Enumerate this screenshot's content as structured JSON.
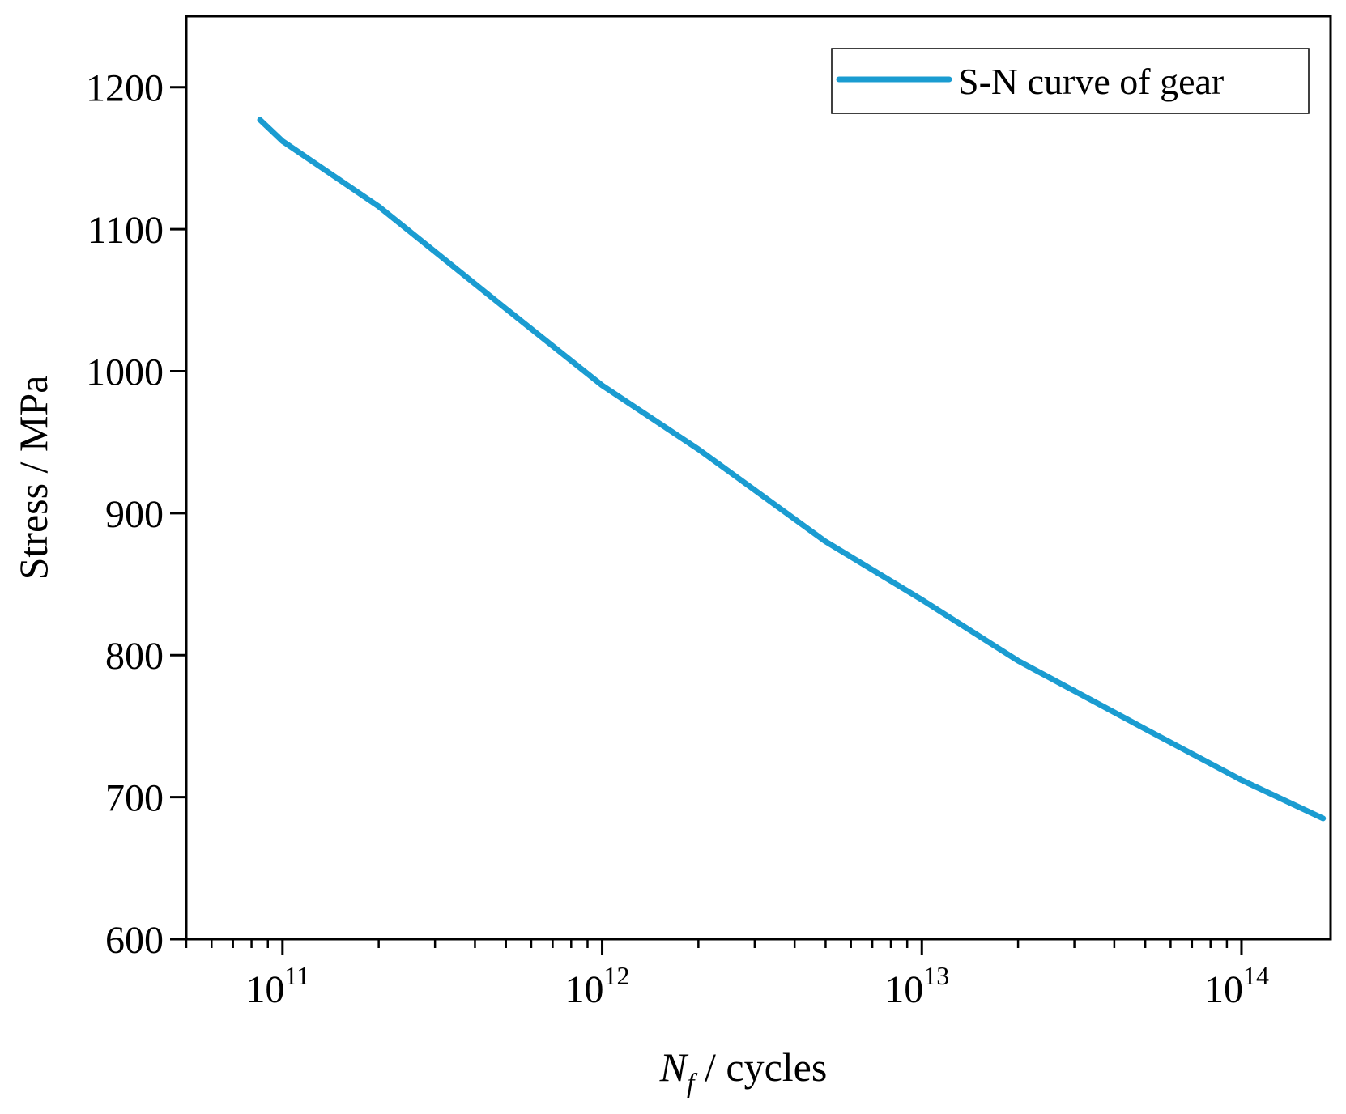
{
  "chart_data": {
    "type": "line",
    "title": "",
    "xlabel_main": "N",
    "xlabel_sub": "f",
    "xlabel_rest": " / cycles",
    "ylabel": "Stress / MPa",
    "x_scale": "log",
    "xlim": [
      50000000000.0,
      190000000000000.0
    ],
    "ylim": [
      600,
      1250
    ],
    "y_ticks": [
      600,
      700,
      800,
      900,
      1000,
      1100,
      1200
    ],
    "y_tick_labels": [
      "600",
      "700",
      "800",
      "900",
      "1000",
      "1100",
      "1200"
    ],
    "x_ticks": [
      {
        "base": "10",
        "exp": "11",
        "value": 100000000000.0
      },
      {
        "base": "10",
        "exp": "12",
        "value": 1000000000000.0
      },
      {
        "base": "10",
        "exp": "13",
        "value": 10000000000000.0
      },
      {
        "base": "10",
        "exp": "14",
        "value": 100000000000000.0
      }
    ],
    "grid": false,
    "legend_position": "top-right",
    "series": [
      {
        "name": "S-N curve of gear",
        "color": "#1a9cd1",
        "x": [
          85000000000.0,
          100000000000.0,
          200000000000.0,
          500000000000.0,
          1000000000000.0,
          2000000000000.0,
          5000000000000.0,
          10000000000000.0,
          20000000000000.0,
          50000000000000.0,
          100000000000000.0,
          180000000000000.0
        ],
        "y": [
          1177,
          1162,
          1116,
          1044,
          990,
          945,
          880,
          839,
          796,
          748,
          712,
          685
        ]
      }
    ]
  }
}
